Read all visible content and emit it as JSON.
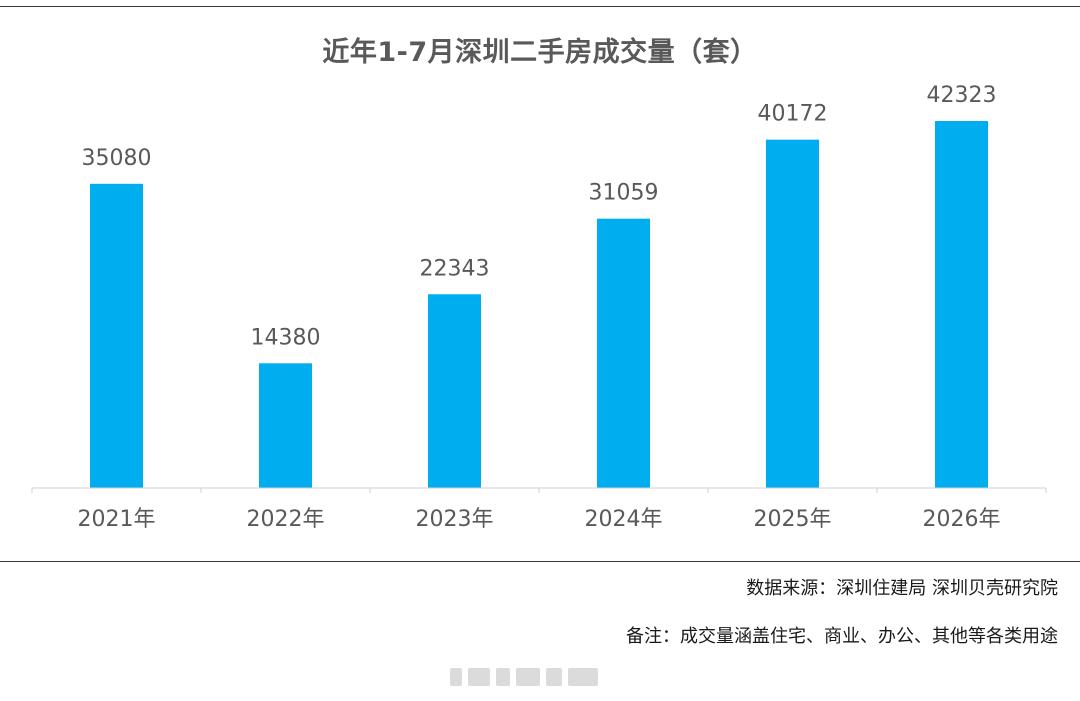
{
  "chart_data": {
    "type": "bar",
    "title": "近年1-7月深圳二手房成交量（套）",
    "categories": [
      "2021年",
      "2022年",
      "2023年",
      "2024年",
      "2025年",
      "2026年"
    ],
    "values": [
      35080,
      14380,
      22343,
      31059,
      40172,
      42323
    ],
    "ylim": [
      0,
      42323
    ],
    "xlabel": "",
    "ylabel": "",
    "grid": false,
    "legend": "none",
    "bar_color": "#00AEEF"
  },
  "footer": {
    "source": "数据来源：深圳住建局 深圳贝壳研究院",
    "note": "备注：成交量涵盖住宅、商业、办公、其他等各类用途"
  },
  "colors": {
    "bar": "#00AEEF",
    "axis": "#d0d0d0",
    "label": "#595959"
  }
}
